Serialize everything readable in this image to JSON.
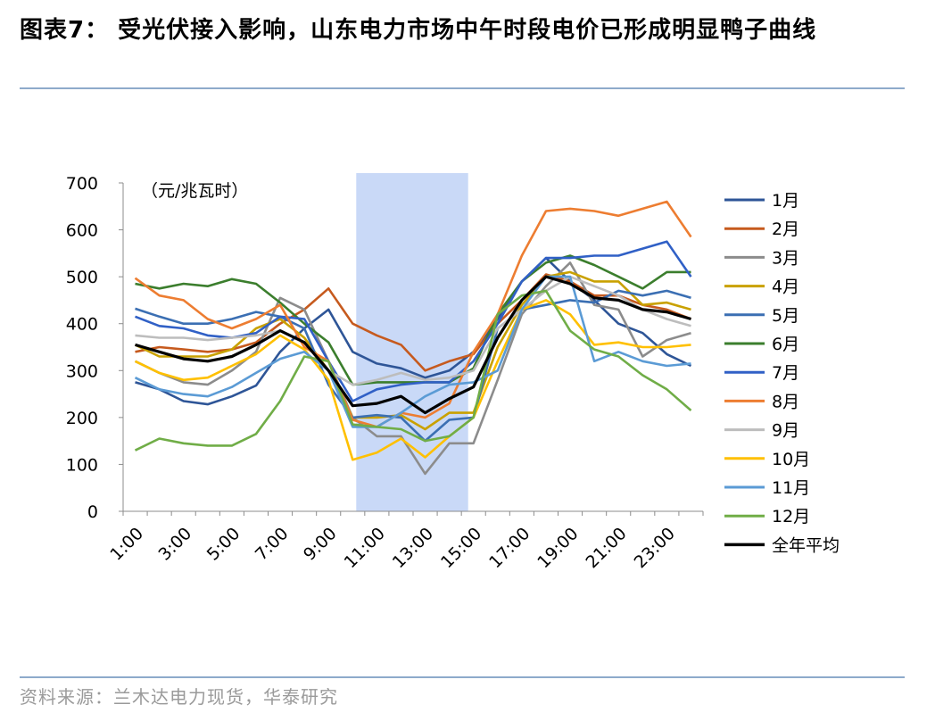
{
  "header": {
    "title": "图表7： 受光伏接入影响，山东电力市场中午时段电价已形成明显鸭子曲线"
  },
  "footer": {
    "source": "资料来源：兰木达电力现货，华泰研究"
  },
  "chart_data": {
    "type": "line",
    "unit_label": "（元/兆瓦时）",
    "x": [
      "1:00",
      "2:00",
      "3:00",
      "4:00",
      "5:00",
      "6:00",
      "7:00",
      "8:00",
      "9:00",
      "10:00",
      "11:00",
      "12:00",
      "13:00",
      "14:00",
      "15:00",
      "16:00",
      "17:00",
      "18:00",
      "19:00",
      "20:00",
      "21:00",
      "22:00",
      "23:00",
      "24:00"
    ],
    "x_tick_labels": [
      "1:00",
      "3:00",
      "5:00",
      "7:00",
      "9:00",
      "11:00",
      "13:00",
      "15:00",
      "17:00",
      "19:00",
      "21:00",
      "23:00"
    ],
    "y_ticks": [
      0,
      100,
      200,
      300,
      400,
      500,
      600,
      700
    ],
    "ylim": [
      0,
      700
    ],
    "highlight_band": {
      "from": "11:00",
      "to": "15:00",
      "color": "#c9d9f7"
    },
    "legend_position": "right",
    "grid": false,
    "series": [
      {
        "name": "1月",
        "color": "#2e5597",
        "values": [
          275,
          260,
          235,
          228,
          245,
          268,
          340,
          390,
          430,
          340,
          315,
          305,
          285,
          300,
          340,
          410,
          490,
          540,
          490,
          450,
          400,
          380,
          335,
          310
        ]
      },
      {
        "name": "2月",
        "color": "#c65a1e",
        "values": [
          340,
          350,
          345,
          340,
          345,
          360,
          400,
          430,
          475,
          400,
          375,
          355,
          300,
          320,
          335,
          400,
          450,
          505,
          490,
          460,
          460,
          440,
          430,
          410
        ]
      },
      {
        "name": "3月",
        "color": "#8c8c8c",
        "values": [
          320,
          295,
          275,
          270,
          300,
          340,
          455,
          430,
          320,
          200,
          160,
          160,
          80,
          145,
          145,
          280,
          420,
          480,
          530,
          440,
          430,
          330,
          365,
          380
        ]
      },
      {
        "name": "4月",
        "color": "#c9a100",
        "values": [
          355,
          330,
          330,
          330,
          345,
          390,
          410,
          370,
          300,
          200,
          200,
          205,
          175,
          210,
          210,
          350,
          440,
          500,
          510,
          490,
          490,
          440,
          445,
          430
        ]
      },
      {
        "name": "5月",
        "color": "#3b6fb3",
        "values": [
          432,
          415,
          400,
          400,
          410,
          425,
          415,
          390,
          270,
          200,
          205,
          200,
          150,
          195,
          200,
          390,
          430,
          440,
          450,
          445,
          470,
          460,
          470,
          455
        ]
      },
      {
        "name": "6月",
        "color": "#3b7e2d",
        "values": [
          485,
          475,
          485,
          480,
          495,
          485,
          445,
          400,
          360,
          270,
          275,
          275,
          275,
          275,
          305,
          420,
          490,
          530,
          545,
          525,
          500,
          475,
          510,
          510
        ]
      },
      {
        "name": "7月",
        "color": "#3060c6",
        "values": [
          415,
          395,
          390,
          375,
          370,
          380,
          415,
          410,
          320,
          235,
          260,
          270,
          275,
          275,
          320,
          400,
          490,
          540,
          540,
          545,
          545,
          560,
          575,
          500
        ]
      },
      {
        "name": "8月",
        "color": "#ed7d31",
        "values": [
          497,
          460,
          450,
          410,
          390,
          410,
          440,
          350,
          320,
          195,
          180,
          210,
          200,
          230,
          340,
          420,
          545,
          640,
          645,
          640,
          630,
          645,
          660,
          585
        ]
      },
      {
        "name": "9月",
        "color": "#bdbdbd",
        "values": [
          375,
          370,
          370,
          365,
          370,
          375,
          385,
          360,
          300,
          270,
          280,
          295,
          280,
          285,
          300,
          390,
          430,
          470,
          500,
          480,
          460,
          430,
          410,
          395
        ]
      },
      {
        "name": "10月",
        "color": "#ffc000",
        "values": [
          320,
          295,
          280,
          285,
          310,
          335,
          375,
          345,
          280,
          110,
          125,
          155,
          115,
          160,
          200,
          320,
          430,
          450,
          420,
          355,
          360,
          350,
          350,
          355
        ]
      },
      {
        "name": "11月",
        "color": "#5b9bd5",
        "values": [
          285,
          260,
          250,
          245,
          265,
          295,
          325,
          340,
          300,
          180,
          180,
          210,
          245,
          270,
          275,
          300,
          430,
          500,
          500,
          320,
          340,
          320,
          310,
          315
        ]
      },
      {
        "name": "12月",
        "color": "#70ad47",
        "values": [
          130,
          155,
          145,
          140,
          140,
          165,
          235,
          330,
          320,
          185,
          180,
          175,
          150,
          160,
          200,
          420,
          460,
          470,
          385,
          345,
          330,
          290,
          260,
          215
        ]
      },
      {
        "name": "全年平均",
        "color": "#000000",
        "values": [
          355,
          340,
          325,
          320,
          330,
          355,
          385,
          360,
          300,
          225,
          230,
          245,
          210,
          240,
          265,
          370,
          450,
          500,
          485,
          455,
          450,
          430,
          425,
          410
        ]
      }
    ]
  }
}
